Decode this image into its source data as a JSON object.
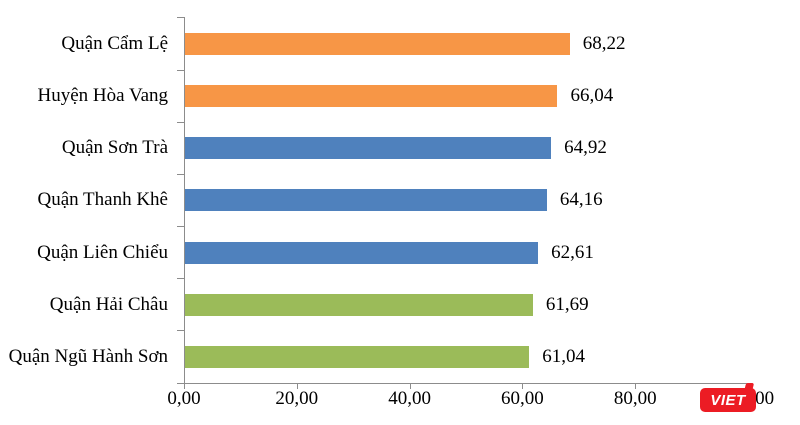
{
  "chart_data": {
    "type": "bar",
    "orientation": "horizontal",
    "title": "",
    "xlabel": "",
    "ylabel": "",
    "categories": [
      "Quận Cẩm Lệ",
      "Huyện Hòa Vang",
      "Quận Sơn Trà",
      "Quận Thanh Khê",
      "Quận Liên Chiểu",
      "Quận Hải Châu",
      "Quận Ngũ Hành Sơn"
    ],
    "values": [
      68.22,
      66.04,
      64.92,
      64.16,
      62.61,
      61.69,
      61.04
    ],
    "value_labels": [
      "68,22",
      "66,04",
      "64,92",
      "64,16",
      "62,61",
      "61,69",
      "61,04"
    ],
    "bar_colors": [
      "#F79646",
      "#F79646",
      "#4F81BD",
      "#4F81BD",
      "#4F81BD",
      "#9BBB59",
      "#9BBB59"
    ],
    "xlim": [
      0,
      100
    ],
    "x_ticks": [
      0,
      20,
      40,
      60,
      80,
      100
    ],
    "x_tick_labels": [
      "0,00",
      "20,00",
      "40,00",
      "60,00",
      "80,00",
      "100,00"
    ],
    "grid": false,
    "legend": false
  },
  "watermark": {
    "label": "VIET",
    "background_color": "#EC1C24",
    "text_color": "#FFFFFF"
  },
  "colors": {
    "axis": "#8C8C8C",
    "text": "#000000",
    "background": "#FFFFFF"
  }
}
